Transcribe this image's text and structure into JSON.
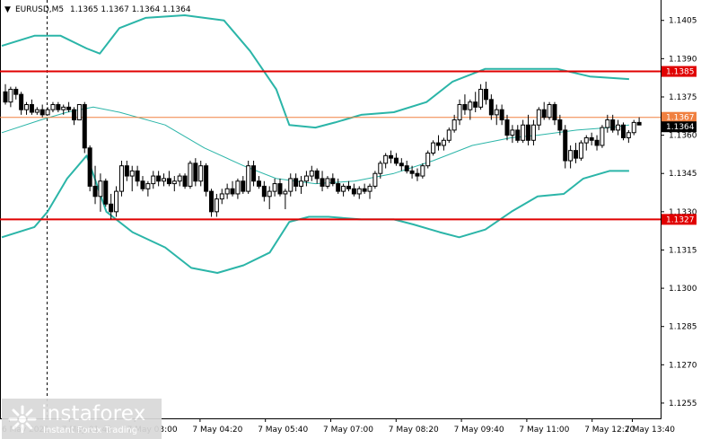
{
  "header": {
    "arrow": "▼",
    "symbol": "EURUSD,M5",
    "ohlc": "1.1365 1.1367 1.1364 1.1364"
  },
  "logo": {
    "name": "instaforex",
    "tagline": "Instant Forex Trading"
  },
  "colors": {
    "background": "#ffffff",
    "candle": "#000000",
    "bollinger": "#2bb5a8",
    "ma": "#2bb5a8",
    "level_line": "#e00000",
    "price_line": "#f08040",
    "current_tag": "#000000"
  },
  "chart_data": {
    "type": "candlestick",
    "timeframe": "M5",
    "y_ticks": [
      1.1405,
      1.139,
      1.1375,
      1.136,
      1.1345,
      1.133,
      1.1315,
      1.13,
      1.1285,
      1.127,
      1.1255
    ],
    "y_tick_labels": [
      "1.1405",
      "1.1390",
      "1.1375",
      "1.1360",
      "1.1345",
      "1.1330",
      "1.1315",
      "1.1300",
      "1.1285",
      "1.1270",
      "1.1255"
    ],
    "ylim": [
      1.1249,
      1.1413
    ],
    "x_tick_labels": [
      "6 May 2021",
      "7 May 01:40",
      "7 May 03:00",
      "7 May 04:20",
      "7 May 05:40",
      "7 May 07:00",
      "7 May 08:20",
      "7 May 09:40",
      "7 May 11:00",
      "7 May 12:20",
      "7 May 13:40"
    ],
    "levels": [
      {
        "value": 1.1385,
        "label": "1.1385",
        "style": "red"
      },
      {
        "value": 1.1327,
        "label": "1.1327",
        "style": "red"
      },
      {
        "value": 1.1367,
        "label": "1.1367",
        "style": "orange"
      },
      {
        "value": 1.1364,
        "label": "1.1364",
        "style": "current"
      }
    ],
    "candles": [
      [
        1.1377,
        1.138,
        1.1372,
        1.1373
      ],
      [
        1.1373,
        1.1379,
        1.1371,
        1.1378
      ],
      [
        1.1378,
        1.1379,
        1.1374,
        1.1376
      ],
      [
        1.1376,
        1.1377,
        1.1368,
        1.137
      ],
      [
        1.137,
        1.1373,
        1.1368,
        1.1372
      ],
      [
        1.1372,
        1.1374,
        1.1368,
        1.1369
      ],
      [
        1.1369,
        1.1371,
        1.1368,
        1.137
      ],
      [
        1.137,
        1.1372,
        1.1367,
        1.1368
      ],
      [
        1.1368,
        1.1371,
        1.1368,
        1.137
      ],
      [
        1.137,
        1.1373,
        1.1369,
        1.1372
      ],
      [
        1.1372,
        1.1373,
        1.1369,
        1.137
      ],
      [
        1.137,
        1.1372,
        1.1368,
        1.1371
      ],
      [
        1.1371,
        1.1373,
        1.1369,
        1.137
      ],
      [
        1.137,
        1.1371,
        1.1364,
        1.1366
      ],
      [
        1.1366,
        1.1372,
        1.1366,
        1.1372
      ],
      [
        1.1372,
        1.1373,
        1.1353,
        1.1355
      ],
      [
        1.1355,
        1.1356,
        1.1338,
        1.134
      ],
      [
        1.134,
        1.1348,
        1.1333,
        1.1336
      ],
      [
        1.1336,
        1.1345,
        1.133,
        1.1342
      ],
      [
        1.1342,
        1.1343,
        1.1332,
        1.1333
      ],
      [
        1.1333,
        1.1337,
        1.1327,
        1.133
      ],
      [
        1.133,
        1.134,
        1.1328,
        1.1338
      ],
      [
        1.1338,
        1.135,
        1.1336,
        1.1348
      ],
      [
        1.1348,
        1.135,
        1.1342,
        1.1344
      ],
      [
        1.1344,
        1.1348,
        1.1338,
        1.1346
      ],
      [
        1.1346,
        1.1348,
        1.134,
        1.1342
      ],
      [
        1.1342,
        1.1344,
        1.1338,
        1.1339
      ],
      [
        1.1339,
        1.1342,
        1.1336,
        1.1341
      ],
      [
        1.1341,
        1.1346,
        1.1339,
        1.1344
      ],
      [
        1.1344,
        1.1346,
        1.134,
        1.1342
      ],
      [
        1.1342,
        1.1345,
        1.134,
        1.1343
      ],
      [
        1.1343,
        1.1346,
        1.134,
        1.1341
      ],
      [
        1.1341,
        1.1344,
        1.1338,
        1.1342
      ],
      [
        1.1342,
        1.1345,
        1.134,
        1.1344
      ],
      [
        1.1344,
        1.1345,
        1.1339,
        1.134
      ],
      [
        1.134,
        1.135,
        1.1339,
        1.1349
      ],
      [
        1.1349,
        1.1351,
        1.134,
        1.1342
      ],
      [
        1.1342,
        1.135,
        1.134,
        1.1348
      ],
      [
        1.1348,
        1.1349,
        1.1336,
        1.1338
      ],
      [
        1.1338,
        1.1339,
        1.1328,
        1.133
      ],
      [
        1.133,
        1.1337,
        1.1328,
        1.1335
      ],
      [
        1.1335,
        1.1339,
        1.1333,
        1.1337
      ],
      [
        1.1337,
        1.1341,
        1.1335,
        1.1339
      ],
      [
        1.1339,
        1.1342,
        1.1336,
        1.1337
      ],
      [
        1.1337,
        1.1343,
        1.1335,
        1.1342
      ],
      [
        1.1342,
        1.1344,
        1.1337,
        1.1338
      ],
      [
        1.1338,
        1.135,
        1.1337,
        1.1348
      ],
      [
        1.1348,
        1.135,
        1.134,
        1.1342
      ],
      [
        1.1342,
        1.1344,
        1.1339,
        1.134
      ],
      [
        1.134,
        1.1342,
        1.1334,
        1.1336
      ],
      [
        1.1336,
        1.134,
        1.1331,
        1.1338
      ],
      [
        1.1338,
        1.1343,
        1.1336,
        1.1341
      ],
      [
        1.1341,
        1.1343,
        1.1336,
        1.1337
      ],
      [
        1.1337,
        1.1339,
        1.1331,
        1.1338
      ],
      [
        1.1338,
        1.1345,
        1.1336,
        1.1343
      ],
      [
        1.1343,
        1.1345,
        1.1338,
        1.134
      ],
      [
        1.134,
        1.1344,
        1.1337,
        1.1342
      ],
      [
        1.1342,
        1.1346,
        1.134,
        1.1344
      ],
      [
        1.1344,
        1.1348,
        1.1342,
        1.1346
      ],
      [
        1.1346,
        1.1347,
        1.1341,
        1.1343
      ],
      [
        1.1343,
        1.1346,
        1.1338,
        1.134
      ],
      [
        1.134,
        1.1344,
        1.1339,
        1.1343
      ],
      [
        1.1343,
        1.1345,
        1.134,
        1.1341
      ],
      [
        1.1341,
        1.1343,
        1.1337,
        1.1338
      ],
      [
        1.1338,
        1.1341,
        1.1336,
        1.134
      ],
      [
        1.134,
        1.1342,
        1.1338,
        1.1339
      ],
      [
        1.1339,
        1.1341,
        1.1336,
        1.1337
      ],
      [
        1.1337,
        1.134,
        1.1335,
        1.1339
      ],
      [
        1.1339,
        1.1341,
        1.1337,
        1.1338
      ],
      [
        1.1338,
        1.1341,
        1.1335,
        1.134
      ],
      [
        1.134,
        1.1346,
        1.1339,
        1.1345
      ],
      [
        1.1345,
        1.135,
        1.1343,
        1.1349
      ],
      [
        1.1349,
        1.1353,
        1.1347,
        1.1352
      ],
      [
        1.1352,
        1.1354,
        1.1349,
        1.1351
      ],
      [
        1.1351,
        1.1353,
        1.1348,
        1.1349
      ],
      [
        1.1349,
        1.1351,
        1.1346,
        1.1348
      ],
      [
        1.1348,
        1.135,
        1.1345,
        1.1346
      ],
      [
        1.1346,
        1.1348,
        1.1343,
        1.1345
      ],
      [
        1.1345,
        1.1347,
        1.1342,
        1.1344
      ],
      [
        1.1344,
        1.1349,
        1.1343,
        1.1348
      ],
      [
        1.1348,
        1.1354,
        1.1347,
        1.1353
      ],
      [
        1.1353,
        1.1358,
        1.1352,
        1.1357
      ],
      [
        1.1357,
        1.136,
        1.1354,
        1.1356
      ],
      [
        1.1356,
        1.1359,
        1.1354,
        1.1358
      ],
      [
        1.1358,
        1.1363,
        1.1357,
        1.1362
      ],
      [
        1.1362,
        1.1368,
        1.1361,
        1.1366
      ],
      [
        1.1366,
        1.1374,
        1.1364,
        1.1372
      ],
      [
        1.1372,
        1.1376,
        1.1368,
        1.137
      ],
      [
        1.137,
        1.1374,
        1.1366,
        1.1373
      ],
      [
        1.1373,
        1.1377,
        1.1369,
        1.1371
      ],
      [
        1.1371,
        1.138,
        1.137,
        1.1378
      ],
      [
        1.1378,
        1.1381,
        1.1372,
        1.1374
      ],
      [
        1.1374,
        1.1376,
        1.1366,
        1.1368
      ],
      [
        1.1368,
        1.1372,
        1.1364,
        1.137
      ],
      [
        1.137,
        1.1372,
        1.1364,
        1.1366
      ],
      [
        1.1366,
        1.1368,
        1.1358,
        1.136
      ],
      [
        1.136,
        1.1364,
        1.1357,
        1.1362
      ],
      [
        1.1362,
        1.1364,
        1.1357,
        1.1358
      ],
      [
        1.1358,
        1.1366,
        1.1357,
        1.1364
      ],
      [
        1.1364,
        1.1368,
        1.1356,
        1.1358
      ],
      [
        1.1358,
        1.1366,
        1.1356,
        1.1364
      ],
      [
        1.1364,
        1.1371,
        1.1362,
        1.137
      ],
      [
        1.137,
        1.1373,
        1.1366,
        1.1367
      ],
      [
        1.1367,
        1.1373,
        1.1366,
        1.1372
      ],
      [
        1.1372,
        1.1373,
        1.1364,
        1.1366
      ],
      [
        1.1366,
        1.1368,
        1.136,
        1.1362
      ],
      [
        1.1362,
        1.1364,
        1.1347,
        1.135
      ],
      [
        1.135,
        1.1356,
        1.1347,
        1.1354
      ],
      [
        1.1354,
        1.1357,
        1.1349,
        1.1351
      ],
      [
        1.1351,
        1.1358,
        1.135,
        1.1357
      ],
      [
        1.1357,
        1.136,
        1.1354,
        1.1359
      ],
      [
        1.1359,
        1.1361,
        1.1356,
        1.1358
      ],
      [
        1.1358,
        1.136,
        1.1354,
        1.1356
      ],
      [
        1.1356,
        1.1364,
        1.1355,
        1.1363
      ],
      [
        1.1363,
        1.1368,
        1.1361,
        1.1366
      ],
      [
        1.1366,
        1.1368,
        1.1361,
        1.1362
      ],
      [
        1.1362,
        1.1366,
        1.136,
        1.1364
      ],
      [
        1.1364,
        1.1365,
        1.1358,
        1.1359
      ],
      [
        1.1359,
        1.1362,
        1.1357,
        1.1361
      ],
      [
        1.1361,
        1.1366,
        1.136,
        1.1365
      ],
      [
        1.1365,
        1.1367,
        1.1364,
        1.1364
      ]
    ],
    "bollinger_upper": [
      [
        0,
        1.1395
      ],
      [
        0.05,
        1.1399
      ],
      [
        0.09,
        1.1399
      ],
      [
        0.13,
        1.1394
      ],
      [
        0.15,
        1.1392
      ],
      [
        0.18,
        1.1402
      ],
      [
        0.22,
        1.1406
      ],
      [
        0.28,
        1.1407
      ],
      [
        0.34,
        1.1405
      ],
      [
        0.38,
        1.1393
      ],
      [
        0.42,
        1.1378
      ],
      [
        0.44,
        1.1364
      ],
      [
        0.48,
        1.1363
      ],
      [
        0.51,
        1.1365
      ],
      [
        0.55,
        1.1368
      ],
      [
        0.6,
        1.1369
      ],
      [
        0.65,
        1.1373
      ],
      [
        0.69,
        1.1381
      ],
      [
        0.74,
        1.1386
      ],
      [
        0.8,
        1.1386
      ],
      [
        0.85,
        1.1386
      ],
      [
        0.9,
        1.1383
      ],
      [
        0.96,
        1.1382
      ]
    ],
    "bollinger_lower": [
      [
        0,
        1.132
      ],
      [
        0.05,
        1.1324
      ],
      [
        0.07,
        1.133
      ],
      [
        0.1,
        1.1343
      ],
      [
        0.13,
        1.1352
      ],
      [
        0.16,
        1.133
      ],
      [
        0.2,
        1.1322
      ],
      [
        0.25,
        1.1316
      ],
      [
        0.29,
        1.1308
      ],
      [
        0.33,
        1.1306
      ],
      [
        0.37,
        1.1309
      ],
      [
        0.41,
        1.1314
      ],
      [
        0.44,
        1.1326
      ],
      [
        0.47,
        1.1328
      ],
      [
        0.5,
        1.1328
      ],
      [
        0.55,
        1.1327
      ],
      [
        0.6,
        1.1327
      ],
      [
        0.63,
        1.1325
      ],
      [
        0.67,
        1.1322
      ],
      [
        0.7,
        1.132
      ],
      [
        0.74,
        1.1323
      ],
      [
        0.78,
        1.133
      ],
      [
        0.82,
        1.1336
      ],
      [
        0.86,
        1.1337
      ],
      [
        0.89,
        1.1343
      ],
      [
        0.93,
        1.1346
      ],
      [
        0.96,
        1.1346
      ]
    ],
    "moving_average": [
      [
        0,
        1.1361
      ],
      [
        0.06,
        1.1366
      ],
      [
        0.1,
        1.1369
      ],
      [
        0.14,
        1.1371
      ],
      [
        0.18,
        1.1369
      ],
      [
        0.25,
        1.1364
      ],
      [
        0.31,
        1.1355
      ],
      [
        0.37,
        1.1348
      ],
      [
        0.42,
        1.1343
      ],
      [
        0.48,
        1.1341
      ],
      [
        0.54,
        1.1342
      ],
      [
        0.6,
        1.1345
      ],
      [
        0.66,
        1.135
      ],
      [
        0.72,
        1.1356
      ],
      [
        0.78,
        1.1359
      ],
      [
        0.82,
        1.136
      ],
      [
        0.88,
        1.1362
      ],
      [
        0.93,
        1.1363
      ],
      [
        0.96,
        1.1364
      ]
    ]
  }
}
